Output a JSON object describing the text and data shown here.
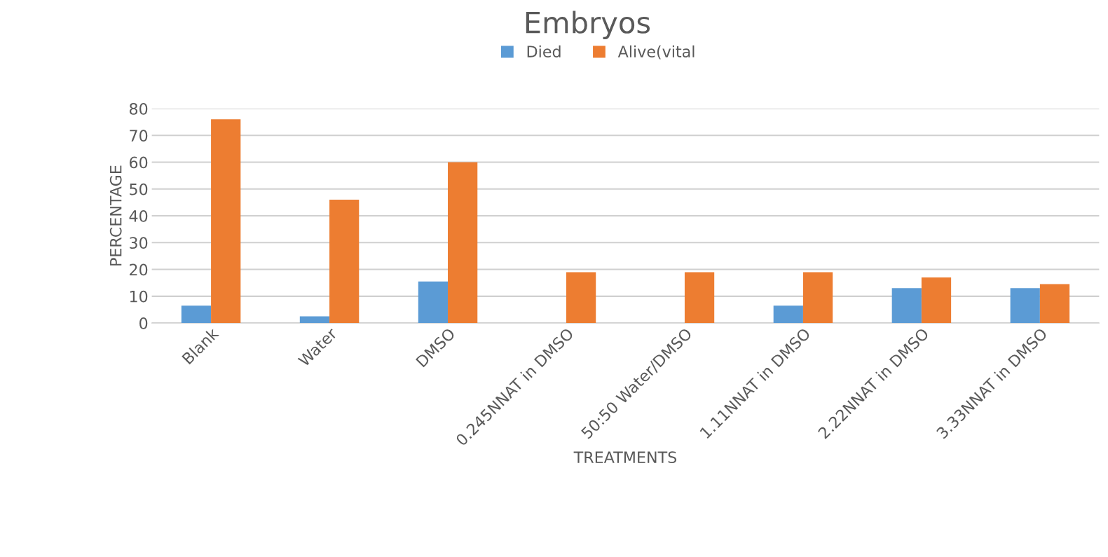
{
  "chart_data": {
    "type": "bar",
    "title": "Embryos",
    "xlabel": "TREATMENTS",
    "ylabel": "PERCENTAGE",
    "categories": [
      "Blank",
      "Water",
      "DMSO",
      "0.245NNAT in DMSO",
      "50:50 Water/DMSO",
      "1.11NNAT in DMSO",
      "2.22NNAT in DMSO",
      "3.33NNAT in DMSO"
    ],
    "series": [
      {
        "name": "Died",
        "color": "#5b9bd5",
        "values": [
          6.5,
          2.5,
          15.5,
          0,
          0,
          6.5,
          13,
          13
        ]
      },
      {
        "name": "Alive(vital",
        "color": "#ed7d31",
        "values": [
          76,
          46,
          60,
          19,
          19,
          19,
          17,
          14.5
        ]
      }
    ],
    "ylim": [
      0,
      80
    ],
    "yticks": [
      0,
      10,
      20,
      30,
      40,
      50,
      60,
      70,
      80
    ],
    "grid": "y",
    "legend": "top"
  }
}
